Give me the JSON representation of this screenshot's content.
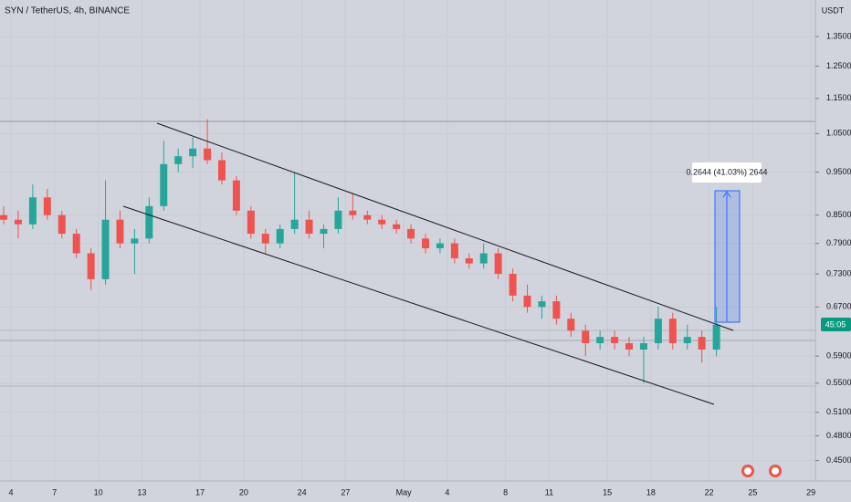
{
  "chart_data": {
    "type": "candlestick",
    "title": "SYN / TetherUS, 4h, BINANCE",
    "y_unit": "USDT",
    "log_scale": true,
    "grid": true,
    "up_color": "#26a69a",
    "down_color": "#ef5350",
    "categories": [
      null,
      "4",
      null,
      null,
      "7",
      null,
      null,
      "10",
      null,
      null,
      "13",
      null,
      null,
      null,
      "17",
      null,
      null,
      "20",
      null,
      null,
      null,
      "24",
      null,
      null,
      "27",
      null,
      null,
      null,
      "May",
      null,
      null,
      "4",
      null,
      null,
      null,
      "8",
      null,
      null,
      "11",
      null,
      null,
      null,
      "15",
      null,
      null,
      "18",
      null,
      null,
      null,
      "22",
      null,
      null,
      "25",
      null,
      null,
      null,
      "29"
    ],
    "open": [
      0.85,
      0.84,
      0.83,
      0.89,
      0.85,
      0.81,
      0.77,
      0.72,
      0.84,
      0.79,
      0.8,
      0.87,
      0.97,
      0.99,
      1.01,
      0.98,
      0.93,
      0.86,
      0.81,
      0.79,
      0.82,
      0.84,
      0.81,
      0.82,
      0.86,
      0.85,
      0.84,
      0.83,
      0.82,
      0.8,
      0.78,
      0.79,
      0.76,
      0.75,
      0.77,
      0.73,
      0.69,
      0.67,
      0.68,
      0.65,
      0.63,
      0.61,
      0.62,
      0.61,
      0.6,
      0.61,
      0.65,
      0.61,
      0.62,
      0.6,
      null,
      null,
      null,
      null,
      null,
      null,
      null
    ],
    "high": [
      0.87,
      0.86,
      0.92,
      0.91,
      0.86,
      0.82,
      0.78,
      0.93,
      0.86,
      0.82,
      0.89,
      1.03,
      1.01,
      1.04,
      1.09,
      1.0,
      0.94,
      0.87,
      0.82,
      0.83,
      0.95,
      0.86,
      0.83,
      0.89,
      0.9,
      0.86,
      0.85,
      0.84,
      0.83,
      0.81,
      0.8,
      0.8,
      0.77,
      0.79,
      0.78,
      0.74,
      0.71,
      0.69,
      0.69,
      0.66,
      0.64,
      0.63,
      0.63,
      0.62,
      0.62,
      0.67,
      0.66,
      0.64,
      0.63,
      0.67,
      null,
      null,
      null,
      null,
      null,
      null,
      null
    ],
    "low": [
      0.83,
      0.8,
      0.82,
      0.84,
      0.8,
      0.76,
      0.7,
      0.71,
      0.78,
      0.73,
      0.79,
      0.86,
      0.95,
      0.96,
      0.97,
      0.92,
      0.85,
      0.8,
      0.77,
      0.78,
      0.81,
      0.8,
      0.78,
      0.81,
      0.84,
      0.83,
      0.82,
      0.81,
      0.79,
      0.77,
      0.77,
      0.75,
      0.74,
      0.74,
      0.72,
      0.68,
      0.66,
      0.65,
      0.64,
      0.62,
      0.59,
      0.6,
      0.6,
      0.59,
      0.55,
      0.6,
      0.6,
      0.6,
      0.58,
      0.59,
      null,
      null,
      null,
      null,
      null,
      null,
      null
    ],
    "close": [
      0.84,
      0.83,
      0.89,
      0.85,
      0.81,
      0.77,
      0.72,
      0.84,
      0.79,
      0.8,
      0.87,
      0.97,
      0.99,
      1.01,
      0.98,
      0.93,
      0.86,
      0.81,
      0.79,
      0.82,
      0.84,
      0.81,
      0.82,
      0.86,
      0.85,
      0.84,
      0.83,
      0.82,
      0.8,
      0.78,
      0.79,
      0.76,
      0.75,
      0.77,
      0.73,
      0.69,
      0.67,
      0.68,
      0.65,
      0.63,
      0.61,
      0.62,
      0.61,
      0.6,
      0.61,
      0.65,
      0.61,
      0.62,
      0.6,
      0.64,
      null,
      null,
      null,
      null,
      null,
      null,
      null
    ],
    "ylim": [
      0.434,
      1.484
    ],
    "yticks": [
      {
        "value": 0.45,
        "label": "0.4500"
      },
      {
        "value": 0.48,
        "label": "0.4800"
      },
      {
        "value": 0.51,
        "label": "0.5100"
      },
      {
        "value": 0.55,
        "label": "0.5500"
      },
      {
        "value": 0.59,
        "label": "0.5900"
      },
      {
        "value": 0.67,
        "label": "0.6700"
      },
      {
        "value": 0.73,
        "label": "0.7300"
      },
      {
        "value": 0.79,
        "label": "0.7900"
      },
      {
        "value": 0.85,
        "label": "0.8500"
      },
      {
        "value": 0.95,
        "label": "0.9500"
      },
      {
        "value": 1.05,
        "label": "1.0500"
      },
      {
        "value": 1.15,
        "label": "1.1500"
      },
      {
        "value": 1.25,
        "label": "1.2500"
      },
      {
        "value": 1.35,
        "label": "1.3500"
      }
    ],
    "annotation": "0.2644 (41.03%) 2644",
    "price_badge": "45:05"
  }
}
